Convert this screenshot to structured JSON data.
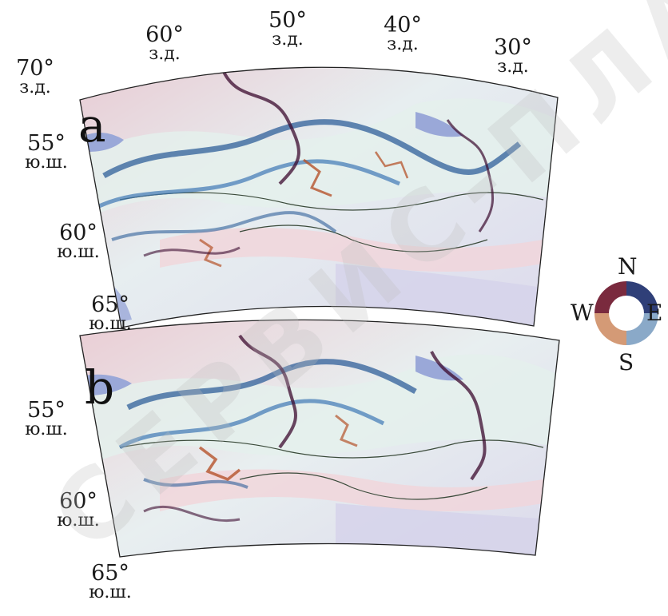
{
  "panels": [
    {
      "letter": "a",
      "lon_labels": [
        {
          "deg": "70°",
          "hemi": "з.д."
        },
        {
          "deg": "60°",
          "hemi": "з.д."
        },
        {
          "deg": "50°",
          "hemi": "з.д."
        },
        {
          "deg": "40°",
          "hemi": "з.д."
        },
        {
          "deg": "30°",
          "hemi": "з.д."
        }
      ],
      "lat_labels": [
        {
          "deg": "55°",
          "hemi": "ю.ш."
        },
        {
          "deg": "60°",
          "hemi": "ю.ш."
        },
        {
          "deg": "65°",
          "hemi": "ю.ш."
        }
      ]
    },
    {
      "letter": "b",
      "lat_labels": [
        {
          "deg": "55°",
          "hemi": "ю.ш."
        },
        {
          "deg": "60°",
          "hemi": "ю.ш."
        },
        {
          "deg": "65°",
          "hemi": "ю.ш."
        }
      ]
    }
  ],
  "compass": {
    "north": "N",
    "south": "S",
    "west": "W",
    "east": "E"
  },
  "colors": {
    "north": "#3b0a2e",
    "east": "#2f5f9a",
    "south": "#d9dde3",
    "west": "#b5532a",
    "land_pink": "#e8c4cc",
    "shelf_light": "#e4f0ec",
    "deep_lavender": "#d6d4ea"
  },
  "watermark": "СЕРВИС-ПЛАН"
}
